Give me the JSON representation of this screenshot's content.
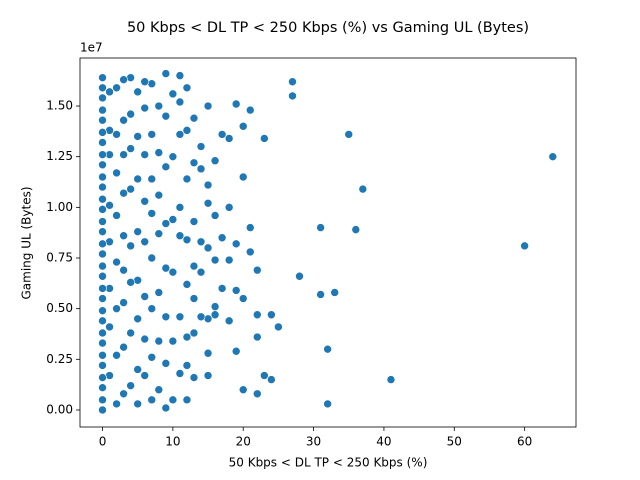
{
  "chart_data": {
    "type": "scatter",
    "title": "50 Kbps < DL TP < 250 Kbps (%) vs Gaming UL (Bytes)",
    "x_label": "50 Kbps < DL TP < 250 Kbps (%)",
    "y_label": "Gaming UL (Bytes)",
    "y_offset_label": "1e7",
    "color": "#1f77b4",
    "xlim": [
      -3.2,
      67.3
    ],
    "ylim": [
      -840000,
      17370000
    ],
    "xticks": [
      0,
      10,
      20,
      30,
      40,
      50,
      60
    ],
    "yticks": [
      {
        "value": 0,
        "label": "0.00"
      },
      {
        "value": 2500000,
        "label": "0.25"
      },
      {
        "value": 5000000,
        "label": "0.50"
      },
      {
        "value": 7500000,
        "label": "0.75"
      },
      {
        "value": 10000000,
        "label": "1.00"
      },
      {
        "value": 12500000,
        "label": "1.25"
      },
      {
        "value": 15000000,
        "label": "1.50"
      }
    ],
    "grid": false,
    "x": [
      64,
      60,
      41,
      37,
      36,
      35,
      33,
      32,
      32,
      31,
      31,
      28,
      27,
      27,
      25,
      24,
      24,
      23,
      23,
      22,
      22,
      22,
      22,
      21,
      21,
      21,
      20,
      20,
      20,
      20,
      19,
      19,
      19,
      19,
      18,
      18,
      18,
      18,
      17,
      17,
      17,
      16,
      16,
      16,
      16,
      16,
      15,
      15,
      15,
      15,
      15,
      15,
      15,
      14,
      14,
      14,
      14,
      14,
      13,
      13,
      13,
      13,
      13,
      13,
      13,
      12,
      12,
      12,
      12,
      12,
      12,
      12,
      12,
      11,
      11,
      11,
      11,
      11,
      11,
      11,
      10,
      10,
      10,
      10,
      10,
      10,
      9,
      9,
      9,
      9,
      9,
      9,
      9,
      9,
      8,
      8,
      8,
      8,
      8,
      8,
      8,
      7,
      7,
      7,
      7,
      7,
      7,
      7,
      7,
      6,
      6,
      6,
      6,
      6,
      6,
      6,
      6,
      5,
      5,
      5,
      5,
      5,
      5,
      5,
      5,
      4,
      4,
      4,
      4,
      4,
      4,
      4,
      4,
      3,
      3,
      3,
      3,
      3,
      3,
      3,
      3,
      3,
      2,
      2,
      2,
      2,
      2,
      2,
      2,
      2,
      1,
      1,
      1,
      1,
      1,
      1,
      1,
      1,
      0,
      0,
      0,
      0,
      0,
      0,
      0,
      0,
      0,
      0,
      0,
      0,
      0,
      0,
      0,
      0,
      0,
      0,
      0,
      0,
      0,
      0,
      0,
      0,
      0,
      0,
      0,
      0,
      0,
      0,
      0
    ],
    "values": [
      12500000.0,
      8100000.0,
      1500000.0,
      10900000.0,
      8900000.0,
      13600000.0,
      5800000.0,
      3000000.0,
      300000.0,
      9000000.0,
      5700000.0,
      6600000.0,
      16200000.0,
      15500000.0,
      4100000.0,
      4700000.0,
      1500000.0,
      1700000.0,
      13400000.0,
      6900000.0,
      4700000.0,
      3600000.0,
      800000.0,
      14800000.0,
      9000000.0,
      7800000.0,
      14000000.0,
      11500000.0,
      5500000.0,
      1000000.0,
      15100000.0,
      8200000.0,
      5900000.0,
      2900000.0,
      13400000.0,
      10000000.0,
      7400000.0,
      4400000.0,
      13600000.0,
      8500000.0,
      6000000.0,
      12300000.0,
      9600000.0,
      7400000.0,
      5100000.0,
      4700000.0,
      15000000.0,
      11100000.0,
      10200000.0,
      8000000.0,
      4500000.0,
      2800000.0,
      1700000.0,
      13000000.0,
      11900000.0,
      8300000.0,
      6800000.0,
      4600000.0,
      14400000.0,
      12200000.0,
      9300000.0,
      7100000.0,
      5500000.0,
      3800000.0,
      1600000.0,
      15900000.0,
      13800000.0,
      11400000.0,
      8400000.0,
      6200000.0,
      3600000.0,
      2200000.0,
      500000.0,
      16500000.0,
      15200000.0,
      13600000.0,
      10000000.0,
      8600000.0,
      4600000.0,
      1800000.0,
      15600000.0,
      12500000.0,
      9400000.0,
      6800000.0,
      3400000.0,
      500000.0,
      16600000.0,
      14500000.0,
      12000000.0,
      9200000.0,
      7000000.0,
      4600000.0,
      2300000.0,
      100000.0,
      15000000.0,
      12700000.0,
      10600000.0,
      8700000.0,
      5800000.0,
      3400000.0,
      1000000.0,
      16100000.0,
      13600000.0,
      11400000.0,
      9700000.0,
      7500000.0,
      5000000.0,
      2600000.0,
      500000.0,
      16200000.0,
      14900000.0,
      12600000.0,
      10300000.0,
      8300000.0,
      5600000.0,
      3500000.0,
      1700000.0,
      15700000.0,
      13500000.0,
      11400000.0,
      8800000.0,
      6400000.0,
      4500000.0,
      2000000.0,
      300000.0,
      16400000.0,
      14600000.0,
      12900000.0,
      10900000.0,
      8100000.0,
      6300000.0,
      3800000.0,
      1200000.0,
      16300000.0,
      14300000.0,
      12600000.0,
      10700000.0,
      8600000.0,
      6900000.0,
      5300000.0,
      3100000.0,
      800000.0,
      15900000.0,
      13600000.0,
      11700000.0,
      9600000.0,
      7300000.0,
      5000000.0,
      2700000.0,
      300000.0,
      15700000.0,
      13800000.0,
      12600000.0,
      10100000.0,
      8300000.0,
      6000000.0,
      4100000.0,
      1700000.0,
      0,
      500000.0,
      1100000.0,
      1600000.0,
      2200000.0,
      2700000.0,
      3300000.0,
      3800000.0,
      4400000.0,
      4900000.0,
      5500000.0,
      6000000.0,
      6600000.0,
      7100000.0,
      7700000.0,
      8200000.0,
      8800000.0,
      9300000.0,
      9900000.0,
      10400000.0,
      11000000.0,
      11500000.0,
      12100000.0,
      12600000.0,
      13200000.0,
      13700000.0,
      14300000.0,
      14800000.0,
      15400000.0,
      15900000.0,
      16400000.0
    ]
  }
}
